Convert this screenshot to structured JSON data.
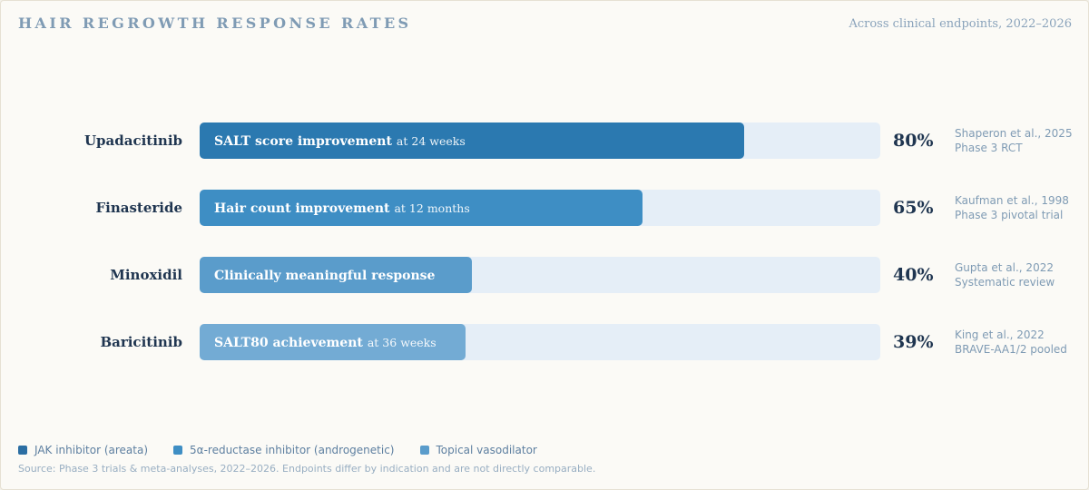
{
  "header": {
    "title": "HAIR REGROWTH RESPONSE RATES",
    "subtitle": "Across clinical endpoints, 2022–2026"
  },
  "chart_data": {
    "type": "bar",
    "orientation": "horizontal",
    "title": "HAIR REGROWTH RESPONSE RATES",
    "subtitle": "Across clinical endpoints, 2022–2026",
    "xlim": [
      0,
      100
    ],
    "grid": false,
    "legend_position": "bottom-left",
    "categories": [
      "Upadacitinib",
      "Finasteride",
      "Minoxidil",
      "Baricitinib"
    ],
    "values": [
      80,
      65,
      40,
      39
    ],
    "rows": [
      {
        "label": "Upadacitinib",
        "value": 80,
        "value_label": "80%",
        "endpoint": "SALT score improvement",
        "timepoint": "at 24 weeks",
        "cite_line1": "Shaperon et al., 2025",
        "cite_line2": "Phase 3 RCT",
        "color": "#2b79b0"
      },
      {
        "label": "Finasteride",
        "value": 65,
        "value_label": "65%",
        "endpoint": "Hair count improvement",
        "timepoint": "at 12 months",
        "cite_line1": "Kaufman et al., 1998",
        "cite_line2": "Phase 3 pivotal trial",
        "color": "#3e8ec4"
      },
      {
        "label": "Minoxidil",
        "value": 40,
        "value_label": "40%",
        "endpoint": "Clinically meaningful response",
        "timepoint": "",
        "cite_line1": "Gupta et al., 2022",
        "cite_line2": "Systematic review",
        "color": "#5a9ccb"
      },
      {
        "label": "Baricitinib",
        "value": 39,
        "value_label": "39%",
        "endpoint": "SALT80 achievement",
        "timepoint": "at 36 weeks",
        "cite_line1": "King et al., 2022",
        "cite_line2": "BRAVE-AA1/2 pooled",
        "color": "#73abd4"
      }
    ],
    "track_color": "#e5eef7"
  },
  "legend": [
    {
      "label": "JAK inhibitor (areata)",
      "color": "#2b6ea3"
    },
    {
      "label": "5α-reductase inhibitor (androgenetic)",
      "color": "#3e8ec4"
    },
    {
      "label": "Topical vasodilator",
      "color": "#5a9ccb"
    }
  ],
  "footer": {
    "source": "Source: Phase 3 trials & meta-analyses, 2022–2026. Endpoints differ by indication and are not directly comparable."
  }
}
